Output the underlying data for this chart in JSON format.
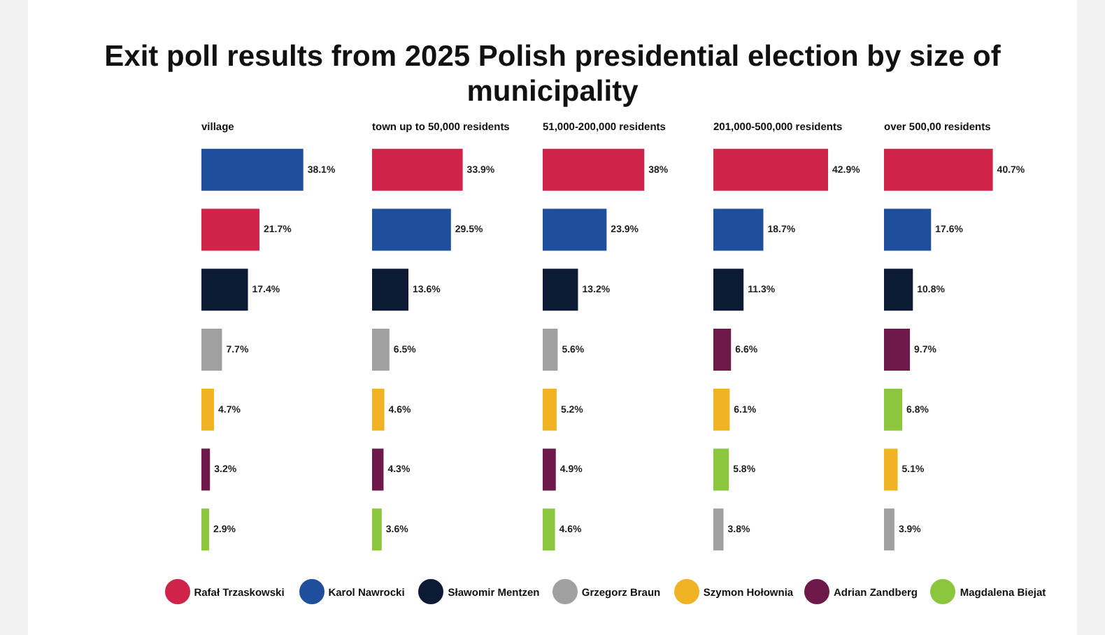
{
  "chart_data": [
    {
      "type": "bar",
      "title": "Exit poll results from 2025 Polish presidential election by size of municipality",
      "subtitle": "village",
      "orientation": "horizontal",
      "stacked": true,
      "legend": "bottom",
      "tick_labels": false,
      "categories": [
        null,
        null,
        null,
        null,
        null,
        null,
        null
      ],
      "series": [
        {
          "name": "Rafał Trzaskowski",
          "color": "#d0234a",
          "values": [
            null,
            21.7,
            null,
            null,
            null,
            null,
            null
          ],
          "value_labels": [
            null,
            "21.7%",
            null,
            null,
            null,
            null,
            null
          ]
        },
        {
          "name": "Karol Nawrocki",
          "color": "#1f4e9c",
          "values": [
            38.1,
            null,
            null,
            null,
            null,
            null,
            null
          ],
          "value_labels": [
            "38.1%",
            null,
            null,
            null,
            null,
            null,
            null
          ]
        },
        {
          "name": "Sławomir Mentzen",
          "color": "#0d1a33",
          "values": [
            null,
            null,
            17.4,
            null,
            null,
            null,
            null
          ],
          "value_labels": [
            null,
            null,
            "17.4%",
            null,
            null,
            null,
            null
          ]
        },
        {
          "name": "Grzegorz Braun",
          "color": "#a0a0a0",
          "values": [
            null,
            null,
            null,
            7.7,
            null,
            null,
            null
          ],
          "value_labels": [
            null,
            null,
            null,
            "7.7%",
            null,
            null,
            null
          ]
        },
        {
          "name": "Szymon Hołownia",
          "color": "#f0b323",
          "values": [
            null,
            null,
            null,
            null,
            4.7,
            null,
            null
          ],
          "value_labels": [
            null,
            null,
            null,
            null,
            "4.7%",
            null,
            null
          ]
        },
        {
          "name": "Adrian Zandberg",
          "color": "#6d1a4a",
          "values": [
            null,
            null,
            null,
            null,
            null,
            3.2,
            null
          ],
          "value_labels": [
            null,
            null,
            null,
            null,
            null,
            "3.2%",
            null
          ]
        },
        {
          "name": "Magdalena Biejat",
          "color": "#8cc63f",
          "values": [
            null,
            null,
            null,
            null,
            null,
            null,
            2.9
          ],
          "value_labels": [
            null,
            null,
            null,
            null,
            null,
            null,
            "2.9%"
          ]
        }
      ]
    },
    {
      "type": "bar",
      "subtitle": "town up to 50,000 residents",
      "orientation": "horizontal",
      "stacked": true,
      "tick_labels": false,
      "categories": [
        null,
        null,
        null,
        null,
        null,
        null,
        null
      ],
      "series": [
        {
          "color": "#d0234a",
          "values": [
            33.9,
            null,
            null,
            null,
            null,
            null,
            null
          ],
          "value_labels": [
            "33.9%",
            null,
            null,
            null,
            null,
            null,
            null
          ]
        },
        {
          "color": "#1f4e9c",
          "values": [
            null,
            29.5,
            null,
            null,
            null,
            null,
            null
          ],
          "value_labels": [
            null,
            "29.5%",
            null,
            null,
            null,
            null,
            null
          ]
        },
        {
          "color": "#0d1a33",
          "values": [
            null,
            null,
            13.6,
            null,
            null,
            null,
            null
          ],
          "value_labels": [
            null,
            null,
            "13.6%",
            null,
            null,
            null,
            null
          ]
        },
        {
          "color": "#a0a0a0",
          "values": [
            null,
            null,
            null,
            6.5,
            null,
            null,
            null
          ],
          "value_labels": [
            null,
            null,
            null,
            "6.5%",
            null,
            null,
            null
          ]
        },
        {
          "color": "#f0b323",
          "values": [
            null,
            null,
            null,
            null,
            4.6,
            null,
            null
          ],
          "value_labels": [
            null,
            null,
            null,
            null,
            "4.6%",
            null,
            null
          ]
        },
        {
          "color": "#6d1a4a",
          "values": [
            null,
            null,
            null,
            null,
            null,
            4.3,
            null
          ],
          "value_labels": [
            null,
            null,
            null,
            null,
            null,
            "4.3%",
            null
          ]
        },
        {
          "color": "#8cc63f",
          "values": [
            null,
            null,
            null,
            null,
            null,
            null,
            3.6
          ],
          "value_labels": [
            null,
            null,
            null,
            null,
            null,
            null,
            "3.6%"
          ]
        }
      ]
    },
    {
      "type": "bar",
      "subtitle": "51,000-200,000 residents",
      "orientation": "horizontal",
      "stacked": true,
      "tick_labels": false,
      "categories": [
        null,
        null,
        null,
        null,
        null,
        null,
        null
      ],
      "series": [
        {
          "color": "#d0234a",
          "values": [
            38,
            null,
            null,
            null,
            null,
            null,
            null
          ],
          "value_labels": [
            "38%",
            null,
            null,
            null,
            null,
            null,
            null
          ]
        },
        {
          "color": "#1f4e9c",
          "values": [
            null,
            23.9,
            null,
            null,
            null,
            null,
            null
          ],
          "value_labels": [
            null,
            "23.9%",
            null,
            null,
            null,
            null,
            null
          ]
        },
        {
          "color": "#0d1a33",
          "values": [
            null,
            null,
            13.2,
            null,
            null,
            null,
            null
          ],
          "value_labels": [
            null,
            null,
            "13.2%",
            null,
            null,
            null,
            null
          ]
        },
        {
          "color": "#a0a0a0",
          "values": [
            null,
            null,
            null,
            5.6,
            null,
            null,
            null
          ],
          "value_labels": [
            null,
            null,
            null,
            "5.6%",
            null,
            null,
            null
          ]
        },
        {
          "color": "#f0b323",
          "values": [
            null,
            null,
            null,
            null,
            5.2,
            null,
            null
          ],
          "value_labels": [
            null,
            null,
            null,
            null,
            "5.2%",
            null,
            null
          ]
        },
        {
          "color": "#6d1a4a",
          "values": [
            null,
            null,
            null,
            null,
            null,
            4.9,
            null
          ],
          "value_labels": [
            null,
            null,
            null,
            null,
            null,
            "4.9%",
            null
          ]
        },
        {
          "color": "#8cc63f",
          "values": [
            null,
            null,
            null,
            null,
            null,
            null,
            4.6
          ],
          "value_labels": [
            null,
            null,
            null,
            null,
            null,
            null,
            "4.6%"
          ]
        }
      ]
    },
    {
      "type": "bar",
      "subtitle": "201,000-500,000 residents",
      "orientation": "horizontal",
      "stacked": true,
      "tick_labels": false,
      "categories": [
        null,
        null,
        null,
        null,
        null,
        null,
        null
      ],
      "series": [
        {
          "color": "#d0234a",
          "values": [
            42.9,
            null,
            null,
            null,
            null,
            null,
            null
          ],
          "value_labels": [
            "42.9%",
            null,
            null,
            null,
            null,
            null,
            null
          ]
        },
        {
          "color": "#1f4e9c",
          "values": [
            null,
            18.7,
            null,
            null,
            null,
            null,
            null
          ],
          "value_labels": [
            null,
            "18.7%",
            null,
            null,
            null,
            null,
            null
          ]
        },
        {
          "color": "#0d1a33",
          "values": [
            null,
            null,
            11.3,
            null,
            null,
            null,
            null
          ],
          "value_labels": [
            null,
            null,
            "11.3%",
            null,
            null,
            null,
            null
          ]
        },
        {
          "color": "#a0a0a0",
          "values": [
            null,
            null,
            null,
            null,
            null,
            null,
            3.8
          ],
          "value_labels": [
            null,
            null,
            null,
            null,
            null,
            null,
            "3.8%"
          ]
        },
        {
          "color": "#f0b323",
          "values": [
            null,
            null,
            null,
            null,
            6.1,
            null,
            null
          ],
          "value_labels": [
            null,
            null,
            null,
            null,
            "6.1%",
            null,
            null
          ]
        },
        {
          "color": "#6d1a4a",
          "values": [
            null,
            null,
            null,
            6.6,
            null,
            null,
            null
          ],
          "value_labels": [
            null,
            null,
            null,
            "6.6%",
            null,
            null,
            null
          ]
        },
        {
          "color": "#8cc63f",
          "values": [
            null,
            null,
            null,
            null,
            null,
            5.8,
            null
          ],
          "value_labels": [
            null,
            null,
            null,
            null,
            null,
            "5.8%",
            null
          ]
        }
      ]
    },
    {
      "type": "bar",
      "subtitle": "over 500,00 residents",
      "orientation": "horizontal",
      "stacked": true,
      "tick_labels": false,
      "categories": [
        null,
        null,
        null,
        null,
        null,
        null,
        null
      ],
      "series": [
        {
          "color": "#d0234a",
          "values": [
            40.7,
            null,
            null,
            null,
            null,
            null,
            null
          ],
          "value_labels": [
            "40.7%",
            null,
            null,
            null,
            null,
            null,
            null
          ]
        },
        {
          "color": "#1f4e9c",
          "values": [
            null,
            17.6,
            null,
            null,
            null,
            null,
            null
          ],
          "value_labels": [
            null,
            "17.6%",
            null,
            null,
            null,
            null,
            null
          ]
        },
        {
          "color": "#0d1a33",
          "values": [
            null,
            null,
            10.8,
            null,
            null,
            null,
            null
          ],
          "value_labels": [
            null,
            null,
            "10.8%",
            null,
            null,
            null,
            null
          ]
        },
        {
          "color": "#a0a0a0",
          "values": [
            null,
            null,
            null,
            null,
            null,
            null,
            3.9
          ],
          "value_labels": [
            null,
            null,
            null,
            null,
            null,
            null,
            "3.9%"
          ]
        },
        {
          "color": "#f0b323",
          "values": [
            null,
            null,
            null,
            null,
            null,
            5.1,
            null
          ],
          "value_labels": [
            null,
            null,
            null,
            null,
            null,
            "5.1%",
            null
          ]
        },
        {
          "color": "#6d1a4a",
          "values": [
            null,
            null,
            null,
            9.7,
            null,
            null,
            null
          ],
          "value_labels": [
            null,
            null,
            null,
            "9.7%",
            null,
            null,
            null
          ]
        },
        {
          "color": "#8cc63f",
          "values": [
            null,
            null,
            null,
            null,
            6.8,
            null,
            null
          ],
          "value_labels": [
            null,
            null,
            null,
            null,
            "6.8%",
            null,
            null
          ]
        }
      ]
    }
  ]
}
